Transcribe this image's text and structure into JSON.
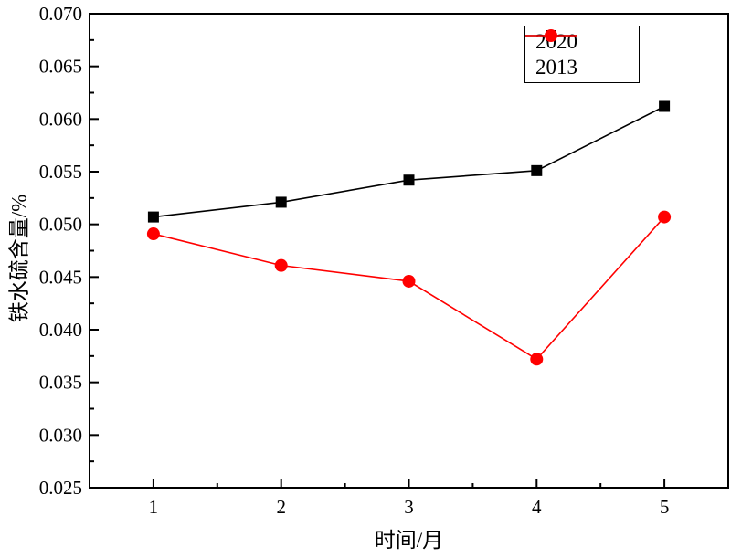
{
  "chart_data": {
    "type": "line",
    "title": "",
    "xlabel": "时间/月",
    "ylabel": "铁水硫含量/%",
    "x": [
      1,
      2,
      3,
      4,
      5
    ],
    "series": [
      {
        "name": "2020",
        "color": "#000000",
        "marker": "square",
        "values": [
          0.0507,
          0.0521,
          0.0542,
          0.0551,
          0.0612
        ]
      },
      {
        "name": "2013",
        "color": "#ff0000",
        "marker": "circle",
        "values": [
          0.0491,
          0.0461,
          0.0446,
          0.0372,
          0.0507
        ]
      }
    ],
    "xlim": [
      0.5,
      5.5
    ],
    "ylim": [
      0.025,
      0.07
    ],
    "x_major_ticks": [
      1,
      2,
      3,
      4,
      5
    ],
    "x_minor_ticks": [
      1.5,
      2.5,
      3.5,
      4.5
    ],
    "y_major_step": 0.005,
    "y_minor_step": 0.0025,
    "y_tick_decimals": 3,
    "grid": false,
    "legend_position": "top-right",
    "axis_color": "#000000",
    "background_color": "#ffffff"
  }
}
